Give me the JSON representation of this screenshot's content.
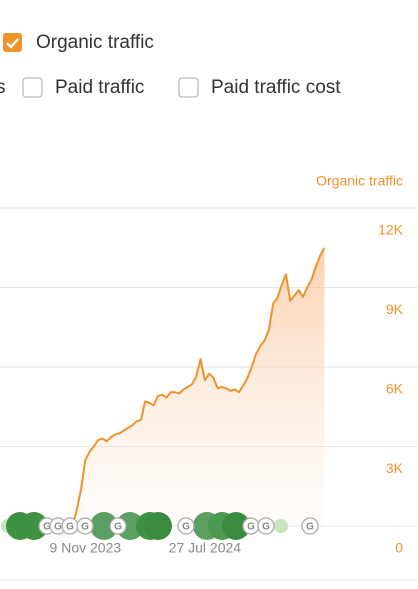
{
  "controls": {
    "items": [
      {
        "label": "Organic traffic",
        "checked": true
      },
      {
        "label": "s",
        "checked": false
      },
      {
        "label": "Paid traffic",
        "checked": false
      },
      {
        "label": "Paid traffic cost",
        "checked": false
      }
    ]
  },
  "chart_data": {
    "type": "area",
    "y_axis_title": "Organic traffic",
    "color": "#f0922b",
    "values": [
      0,
      600,
      1400,
      2500,
      2800,
      3000,
      3250,
      3300,
      3200,
      3350,
      3450,
      3500,
      3600,
      3700,
      3800,
      3950,
      4000,
      4700,
      4650,
      4550,
      4900,
      4950,
      4850,
      5050,
      5050,
      5000,
      5150,
      5250,
      5350,
      5650,
      6300,
      5500,
      5750,
      5600,
      5200,
      5250,
      5200,
      5100,
      5150,
      5050,
      5300,
      5600,
      6000,
      6500,
      6800,
      7000,
      7400,
      8400,
      8600,
      9100,
      9500,
      8500,
      8700,
      8900,
      8650,
      9000,
      9300,
      9800,
      10200,
      10500
    ],
    "xlim": [
      -17,
      65
    ],
    "xticks": [
      {
        "value": 3,
        "label": "9 Nov 2023"
      },
      {
        "value": 31,
        "label": "27 Jul 2024"
      }
    ],
    "ylim": [
      0,
      12000
    ],
    "yticks": [
      0,
      {
        "value": 3000,
        "label": "3K"
      },
      {
        "value": 6000,
        "label": "6K"
      },
      {
        "value": 9000,
        "label": "9K"
      },
      {
        "value": 12000,
        "label": "12K"
      }
    ],
    "grid": true,
    "marker_label": "G"
  }
}
